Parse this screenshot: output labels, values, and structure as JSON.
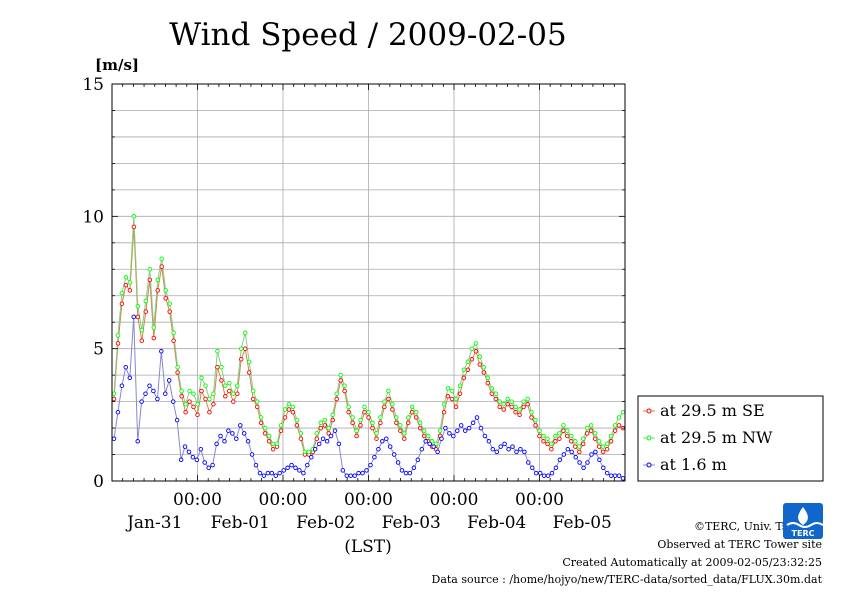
{
  "chart_data": {
    "type": "line",
    "title": "Wind Speed / 2009-02-05",
    "ylabel": "[m/s]",
    "xlabel": "(LST)",
    "ylim": [
      0,
      15
    ],
    "yticks": [
      0,
      5,
      10,
      15
    ],
    "xlim_hours": [
      0,
      144
    ],
    "time_ticks": [
      "00:00",
      "00:00",
      "00:00",
      "00:00",
      "00:00"
    ],
    "date_labels": [
      "Jan-31",
      "Feb-01",
      "Feb-02",
      "Feb-03",
      "Feb-04",
      "Feb-05"
    ],
    "grid": true,
    "legend_position": "right",
    "series": [
      {
        "name": "at 29.5 m SE",
        "color": "#ff0000",
        "line_color": "#cc8844",
        "values": [
          3.1,
          5.2,
          6.7,
          7.4,
          7.2,
          9.6,
          6.2,
          5.3,
          6.4,
          7.6,
          5.4,
          7.2,
          8.1,
          6.9,
          6.4,
          5.3,
          4.1,
          3.2,
          2.6,
          3.0,
          2.8,
          2.5,
          3.4,
          3.1,
          2.6,
          2.9,
          4.3,
          3.8,
          3.2,
          3.4,
          3.0,
          3.3,
          4.6,
          5.0,
          4.1,
          3.1,
          2.8,
          2.2,
          1.8,
          1.5,
          1.2,
          1.3,
          1.9,
          2.4,
          2.7,
          2.6,
          2.1,
          1.6,
          1.0,
          1.0,
          1.1,
          1.6,
          2.0,
          2.1,
          1.8,
          2.3,
          3.1,
          3.8,
          3.4,
          2.6,
          2.2,
          1.7,
          2.1,
          2.6,
          2.4,
          2.0,
          1.6,
          2.2,
          2.8,
          3.1,
          2.7,
          2.2,
          1.9,
          1.6,
          2.2,
          2.6,
          2.4,
          2.0,
          1.7,
          1.5,
          1.3,
          1.2,
          1.7,
          2.6,
          3.2,
          3.1,
          2.8,
          3.3,
          3.9,
          4.2,
          4.6,
          4.9,
          4.4,
          4.1,
          3.7,
          3.3,
          3.1,
          2.8,
          2.7,
          2.9,
          2.8,
          2.6,
          2.5,
          2.8,
          2.9,
          2.4,
          2.1,
          1.7,
          1.5,
          1.4,
          1.2,
          1.5,
          1.6,
          1.9,
          1.7,
          1.5,
          1.3,
          1.1,
          1.4,
          1.8,
          1.9,
          1.6,
          1.3,
          1.1,
          1.2,
          1.5,
          1.9,
          2.1,
          2.0
        ]
      },
      {
        "name": "at 29.5 m NW",
        "color": "#00ff00",
        "line_color": "#88cc88",
        "values": [
          3.3,
          5.5,
          7.1,
          7.7,
          7.5,
          10.0,
          6.6,
          5.7,
          6.8,
          8.0,
          5.8,
          7.6,
          8.4,
          7.2,
          6.7,
          5.6,
          4.3,
          3.4,
          2.9,
          3.4,
          3.3,
          2.9,
          3.9,
          3.6,
          3.1,
          3.3,
          4.9,
          4.3,
          3.6,
          3.7,
          3.3,
          3.6,
          5.0,
          5.6,
          4.5,
          3.4,
          3.0,
          2.4,
          2.0,
          1.7,
          1.4,
          1.4,
          2.1,
          2.7,
          2.9,
          2.8,
          2.3,
          1.8,
          1.1,
          1.1,
          1.2,
          1.8,
          2.2,
          2.3,
          2.0,
          2.5,
          3.3,
          4.0,
          3.6,
          2.8,
          2.4,
          1.9,
          2.3,
          2.8,
          2.6,
          2.2,
          1.8,
          2.4,
          3.0,
          3.4,
          2.9,
          2.4,
          2.1,
          1.8,
          2.4,
          2.8,
          2.6,
          2.2,
          1.9,
          1.7,
          1.5,
          1.4,
          1.9,
          2.9,
          3.5,
          3.4,
          3.1,
          3.6,
          4.2,
          4.5,
          5.0,
          5.2,
          4.7,
          4.3,
          3.9,
          3.5,
          3.3,
          3.0,
          2.9,
          3.1,
          3.0,
          2.8,
          2.7,
          3.0,
          3.1,
          2.6,
          2.3,
          1.9,
          1.7,
          1.6,
          1.4,
          1.7,
          1.8,
          2.1,
          1.9,
          1.7,
          1.5,
          1.3,
          1.6,
          2.0,
          2.1,
          1.8,
          1.5,
          1.3,
          1.4,
          1.7,
          2.1,
          2.4,
          2.6
        ]
      },
      {
        "name": "at 1.6 m",
        "color": "#0000ff",
        "line_color": "#8888cc",
        "values": [
          1.6,
          2.6,
          3.6,
          4.3,
          3.9,
          6.2,
          1.5,
          3.0,
          3.3,
          3.6,
          3.4,
          3.1,
          4.9,
          3.3,
          3.8,
          3.0,
          2.3,
          0.8,
          1.3,
          1.1,
          0.9,
          0.8,
          1.2,
          0.7,
          0.5,
          0.6,
          1.4,
          1.7,
          1.5,
          1.9,
          1.8,
          1.6,
          2.1,
          1.8,
          1.5,
          1.0,
          0.6,
          0.3,
          0.2,
          0.3,
          0.3,
          0.2,
          0.3,
          0.4,
          0.5,
          0.6,
          0.5,
          0.4,
          0.3,
          0.6,
          0.9,
          1.2,
          1.4,
          1.6,
          1.5,
          1.7,
          1.9,
          1.4,
          0.4,
          0.2,
          0.2,
          0.2,
          0.3,
          0.3,
          0.4,
          0.6,
          0.9,
          1.2,
          1.5,
          1.6,
          1.3,
          1.0,
          0.7,
          0.4,
          0.3,
          0.3,
          0.5,
          0.8,
          1.2,
          1.5,
          1.4,
          1.3,
          1.1,
          1.6,
          2.0,
          1.8,
          1.7,
          1.9,
          2.1,
          1.9,
          2.0,
          2.2,
          2.4,
          2.0,
          1.7,
          1.5,
          1.2,
          1.1,
          1.3,
          1.4,
          1.2,
          1.3,
          1.1,
          1.2,
          1.1,
          0.7,
          0.5,
          0.3,
          0.3,
          0.2,
          0.2,
          0.3,
          0.5,
          0.8,
          1.0,
          1.2,
          1.1,
          0.9,
          0.7,
          0.5,
          0.7,
          1.0,
          1.1,
          0.8,
          0.5,
          0.3,
          0.2,
          0.2,
          0.2,
          0.1
        ]
      }
    ]
  },
  "credits": {
    "copyright": "©TERC, Univ. Tsukuba",
    "site": "Observed at TERC Tower site",
    "created": "Created Automatically at 2009-02-05/23:32:25",
    "source": "Data source : /home/hojyo/new/TERC-data/sorted_data/FLUX.30m.dat"
  },
  "logo": {
    "text": "TERC",
    "color": "#1166cc"
  }
}
